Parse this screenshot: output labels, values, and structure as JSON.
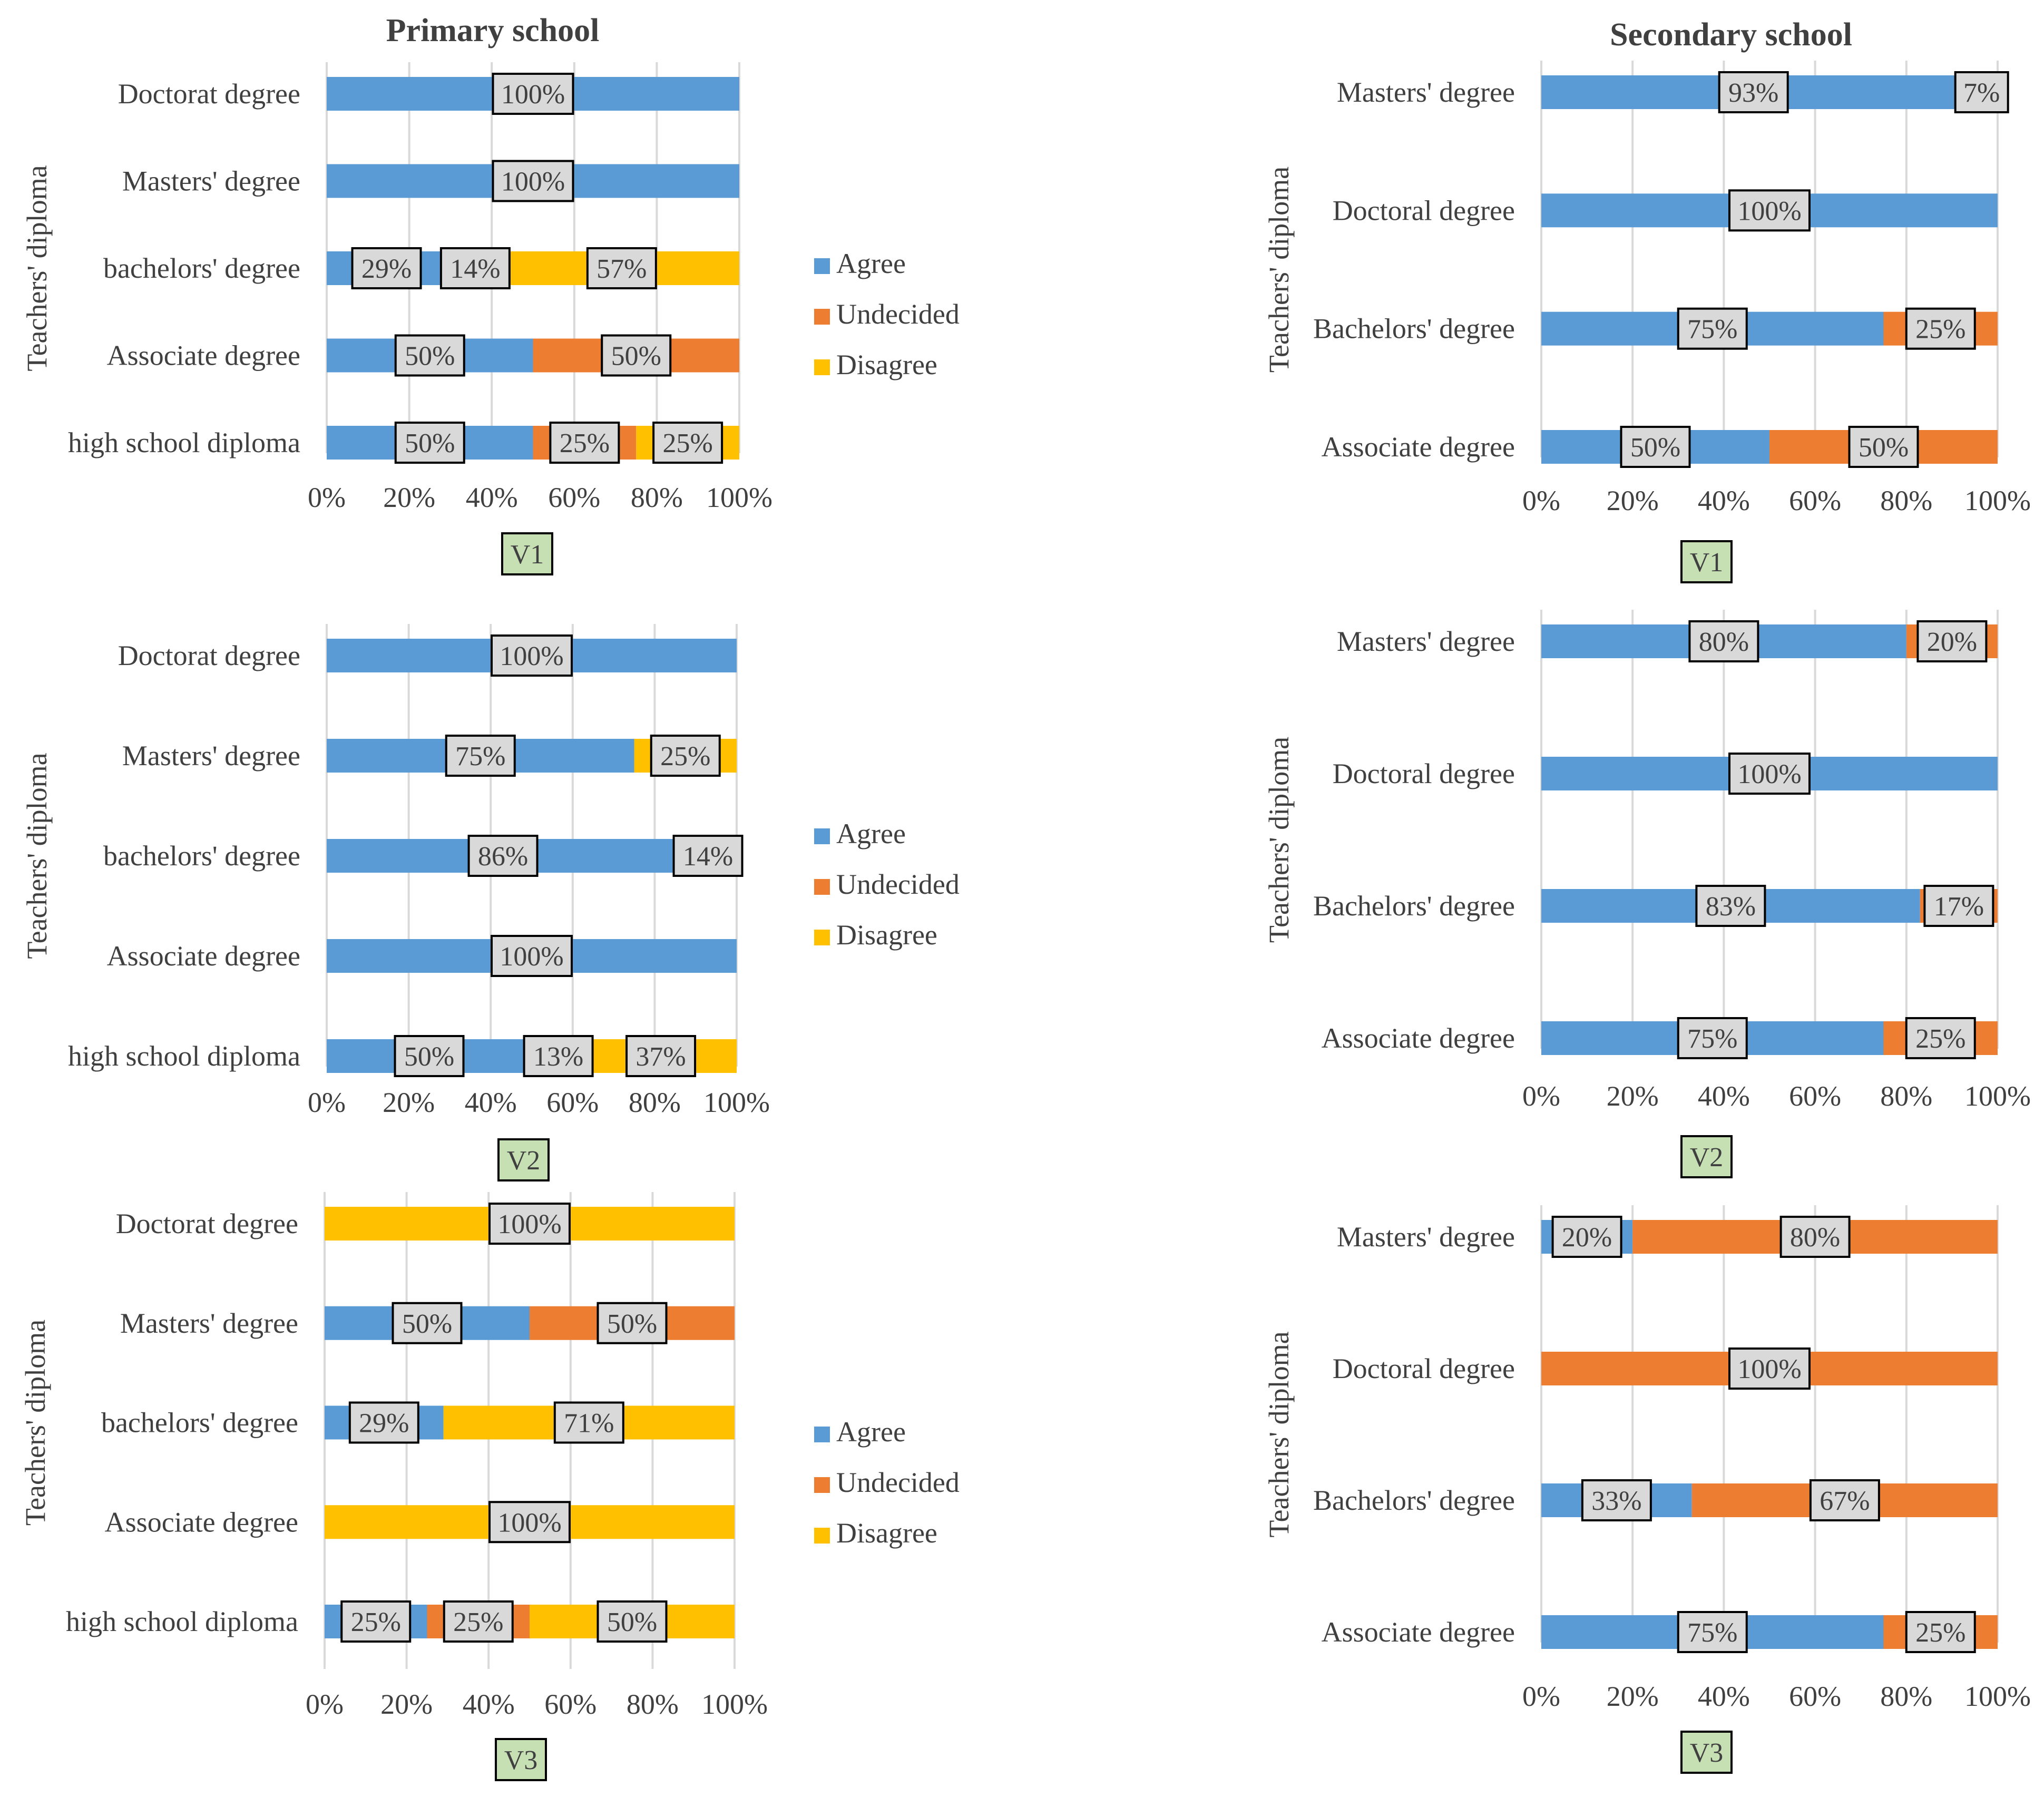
{
  "columns": [
    {
      "title": "Primary school"
    },
    {
      "title": "Secondary school"
    }
  ],
  "legend": {
    "items": [
      {
        "label": "Agree",
        "color": "#5b9bd5"
      },
      {
        "label": "Undecided",
        "color": "#ed7d31"
      },
      {
        "label": "Disagree",
        "color": "#ffc000"
      }
    ]
  },
  "chart_data": [
    {
      "type": "bar",
      "stacked": "percent",
      "orientation": "horizontal",
      "panel": "Primary school",
      "variable": "V1",
      "ylabel": "Teachers' diploma",
      "categories": [
        "Doctorat degree",
        "Masters' degree",
        "bachelors' degree",
        "Associate degree",
        "high school diploma"
      ],
      "series": [
        {
          "name": "Agree",
          "values": [
            100,
            100,
            29,
            50,
            50
          ],
          "labels": [
            "100%",
            "100%",
            "29%",
            "50%",
            "50%"
          ]
        },
        {
          "name": "Undecided",
          "values": [
            0,
            0,
            14,
            50,
            25
          ],
          "labels": [
            "",
            "",
            "14%",
            "50%",
            "25%"
          ]
        },
        {
          "name": "Disagree",
          "values": [
            0,
            0,
            57,
            0,
            25
          ],
          "labels": [
            "",
            "",
            "57%",
            "",
            "25%"
          ]
        }
      ],
      "xticks": [
        "0%",
        "20%",
        "40%",
        "60%",
        "80%",
        "100%"
      ],
      "xlim": [
        0,
        100
      ],
      "legend": true
    },
    {
      "type": "bar",
      "stacked": "percent",
      "orientation": "horizontal",
      "panel": "Primary school",
      "variable": "V2",
      "ylabel": "Teachers' diploma",
      "categories": [
        "Doctorat degree",
        "Masters' degree",
        "bachelors' degree",
        "Associate degree",
        "high school diploma"
      ],
      "series": [
        {
          "name": "Agree",
          "values": [
            100,
            75,
            86,
            100,
            50
          ],
          "labels": [
            "100%",
            "75%",
            "86%",
            "100%",
            "50%"
          ]
        },
        {
          "name": "Undecided",
          "values": [
            0,
            0,
            14,
            0,
            13
          ],
          "labels": [
            "",
            "",
            "14%",
            "",
            "13%"
          ]
        },
        {
          "name": "Disagree",
          "values": [
            0,
            25,
            0,
            0,
            37
          ],
          "labels": [
            "",
            "25%",
            "",
            "",
            "37%"
          ]
        }
      ],
      "xticks": [
        "0%",
        "20%",
        "40%",
        "60%",
        "80%",
        "100%"
      ],
      "xlim": [
        0,
        100
      ],
      "legend": true
    },
    {
      "type": "bar",
      "stacked": "percent",
      "orientation": "horizontal",
      "panel": "Primary school",
      "variable": "V3",
      "ylabel": "Teachers' diploma",
      "categories": [
        "Doctorat degree",
        "Masters' degree",
        "bachelors' degree",
        "Associate degree",
        "high school diploma"
      ],
      "series": [
        {
          "name": "Agree",
          "values": [
            0,
            50,
            29,
            0,
            25
          ],
          "labels": [
            "",
            "50%",
            "29%",
            "",
            "25%"
          ]
        },
        {
          "name": "Undecided",
          "values": [
            0,
            50,
            0,
            0,
            25
          ],
          "labels": [
            "",
            "50%",
            "",
            "",
            "25%"
          ]
        },
        {
          "name": "Disagree",
          "values": [
            100,
            0,
            71,
            100,
            50
          ],
          "labels": [
            "100%",
            "",
            "71%",
            "100%",
            "50%"
          ]
        }
      ],
      "xticks": [
        "0%",
        "20%",
        "40%",
        "60%",
        "80%",
        "100%"
      ],
      "xlim": [
        0,
        100
      ],
      "legend": true
    },
    {
      "type": "bar",
      "stacked": "percent",
      "orientation": "horizontal",
      "panel": "Secondary school",
      "variable": "V1",
      "ylabel": "Teachers' diploma",
      "categories": [
        "Masters' degree",
        "Doctoral degree",
        "Bachelors' degree",
        "Associate degree"
      ],
      "series": [
        {
          "name": "Agree",
          "values": [
            93,
            100,
            75,
            50
          ],
          "labels": [
            "93%",
            "100%",
            "75%",
            "50%"
          ]
        },
        {
          "name": "Undecided",
          "values": [
            7,
            0,
            25,
            50
          ],
          "labels": [
            "7%",
            "",
            "25%",
            "50%"
          ]
        }
      ],
      "xticks": [
        "0%",
        "20%",
        "40%",
        "60%",
        "80%",
        "100%"
      ],
      "xlim": [
        0,
        100
      ],
      "legend": false
    },
    {
      "type": "bar",
      "stacked": "percent",
      "orientation": "horizontal",
      "panel": "Secondary school",
      "variable": "V2",
      "ylabel": "Teachers' diploma",
      "categories": [
        "Masters' degree",
        "Doctoral degree",
        "Bachelors' degree",
        "Associate degree"
      ],
      "series": [
        {
          "name": "Agree",
          "values": [
            80,
            100,
            83,
            75
          ],
          "labels": [
            "80%",
            "100%",
            "83%",
            "75%"
          ]
        },
        {
          "name": "Undecided",
          "values": [
            20,
            0,
            17,
            25
          ],
          "labels": [
            "20%",
            "",
            "17%",
            "25%"
          ]
        }
      ],
      "xticks": [
        "0%",
        "20%",
        "40%",
        "60%",
        "80%",
        "100%"
      ],
      "xlim": [
        0,
        100
      ],
      "legend": false
    },
    {
      "type": "bar",
      "stacked": "percent",
      "orientation": "horizontal",
      "panel": "Secondary school",
      "variable": "V3",
      "ylabel": "Teachers' diploma",
      "categories": [
        "Masters' degree",
        "Doctoral degree",
        "Bachelors' degree",
        "Associate degree"
      ],
      "series": [
        {
          "name": "Agree",
          "values": [
            20,
            0,
            33,
            75
          ],
          "labels": [
            "20%",
            "",
            "33%",
            "75%"
          ]
        },
        {
          "name": "Undecided",
          "values": [
            80,
            100,
            67,
            25
          ],
          "labels": [
            "80%",
            "100%",
            "67%",
            "25%"
          ]
        }
      ],
      "xticks": [
        "0%",
        "20%",
        "40%",
        "60%",
        "80%",
        "100%"
      ],
      "xlim": [
        0,
        100
      ],
      "legend": false
    }
  ]
}
